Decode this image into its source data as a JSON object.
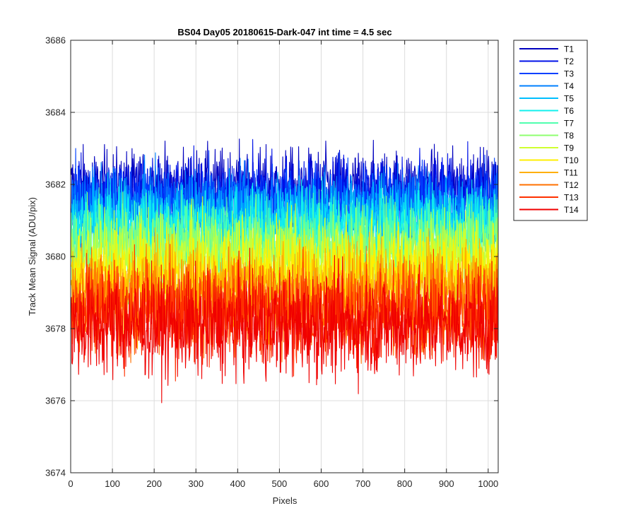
{
  "chart_data": {
    "type": "line",
    "title": "BS04 Day05 20180615-Dark-047 int time = 4.5 sec",
    "xlabel": "Pixels",
    "ylabel": "Track Mean Signal (ADU/pix)",
    "xlim": [
      0,
      1024
    ],
    "ylim": [
      3674,
      3686
    ],
    "x_ticks": [
      "0",
      "100",
      "200",
      "300",
      "400",
      "500",
      "600",
      "700",
      "800",
      "900",
      "1000"
    ],
    "y_ticks": [
      "3674",
      "3676",
      "3678",
      "3680",
      "3682",
      "3684",
      "3686"
    ],
    "grid": true,
    "legend_position": "outside-top-right",
    "x_range_points": [
      1,
      1024
    ],
    "series": [
      {
        "name": "T1",
        "color": "#0000bf",
        "mean": 3681.9,
        "noise": 0.85
      },
      {
        "name": "T2",
        "color": "#0012e8",
        "mean": 3681.7,
        "noise": 0.85
      },
      {
        "name": "T3",
        "color": "#0040ff",
        "mean": 3681.5,
        "noise": 0.85
      },
      {
        "name": "T4",
        "color": "#0080ff",
        "mean": 3681.3,
        "noise": 0.85
      },
      {
        "name": "T5",
        "color": "#00bfff",
        "mean": 3681.0,
        "noise": 0.85
      },
      {
        "name": "T6",
        "color": "#12f0ed",
        "mean": 3680.8,
        "noise": 0.9
      },
      {
        "name": "T7",
        "color": "#50ffaf",
        "mean": 3680.5,
        "noise": 0.9
      },
      {
        "name": "T8",
        "color": "#8fff70",
        "mean": 3680.2,
        "noise": 0.9
      },
      {
        "name": "T9",
        "color": "#cfff30",
        "mean": 3679.9,
        "noise": 0.95
      },
      {
        "name": "T10",
        "color": "#ffef00",
        "mean": 3679.5,
        "noise": 1.0
      },
      {
        "name": "T11",
        "color": "#ffaf00",
        "mean": 3679.1,
        "noise": 1.0
      },
      {
        "name": "T12",
        "color": "#ff7000",
        "mean": 3678.7,
        "noise": 1.05
      },
      {
        "name": "T13",
        "color": "#ff3000",
        "mean": 3678.4,
        "noise": 1.1
      },
      {
        "name": "T14",
        "color": "#f00000",
        "mean": 3678.1,
        "noise": 1.15
      }
    ]
  }
}
